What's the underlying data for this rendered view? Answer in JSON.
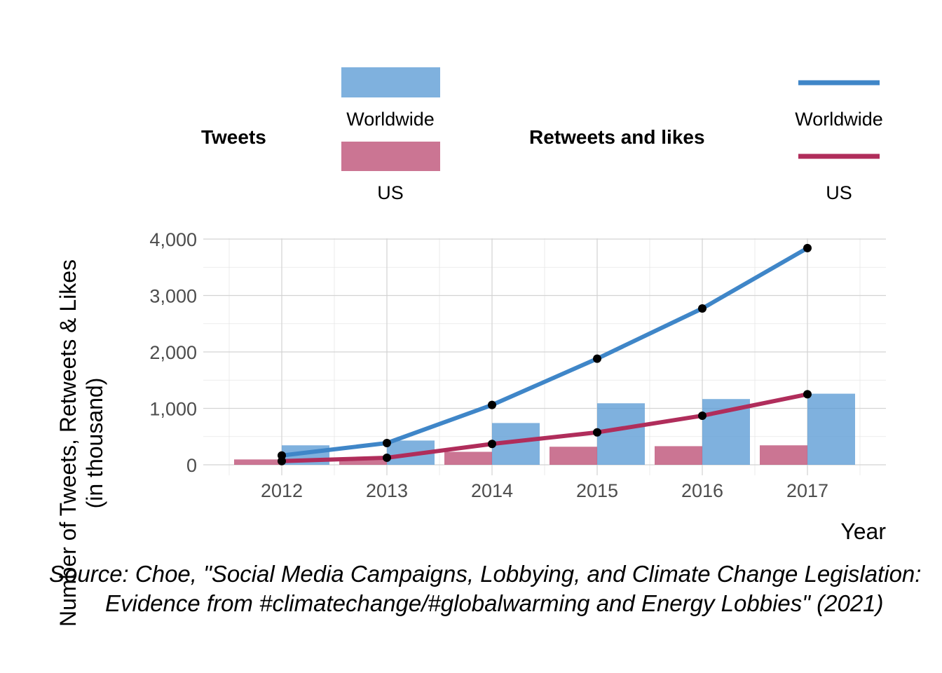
{
  "colors": {
    "tweets_worldwide": "#5B9BD5",
    "tweets_us": "#BC4E74",
    "retweets_worldwide": "#3F86C8",
    "retweets_us": "#B02D5B",
    "point": "#000000"
  },
  "legend": {
    "tweets_title": "Tweets",
    "retweets_title": "Retweets and likes",
    "worldwide_label": "Worldwide",
    "us_label": "US"
  },
  "chart_data": {
    "type": "bar",
    "title": "",
    "xlabel": "Year",
    "ylabel_line1": "Number of Tweets, Retweets & Likes",
    "ylabel_line2": "(in thousand)",
    "categories": [
      "2012",
      "2013",
      "2014",
      "2015",
      "2016",
      "2017"
    ],
    "ylim": [
      0,
      4000
    ],
    "yticks": [
      0,
      1000,
      2000,
      3000,
      4000
    ],
    "ytick_labels": [
      "0",
      "1,000",
      "2,000",
      "3,000",
      "4,000"
    ],
    "grid": true,
    "bar_series": [
      {
        "name": "US",
        "group": "Tweets",
        "values": [
          95,
          100,
          230,
          320,
          330,
          345
        ]
      },
      {
        "name": "Worldwide",
        "group": "Tweets",
        "values": [
          345,
          430,
          740,
          1090,
          1165,
          1260
        ]
      }
    ],
    "line_series": [
      {
        "name": "Worldwide",
        "group": "Retweets and likes",
        "values": [
          165,
          385,
          1060,
          1880,
          2770,
          3840
        ]
      },
      {
        "name": "US",
        "group": "Retweets and likes",
        "values": [
          65,
          125,
          370,
          575,
          870,
          1250
        ]
      }
    ],
    "caption_line1": "Source: Choe, \"Social Media Campaigns, Lobbying, and Climate Change Legislation:",
    "caption_line2": "Evidence from #climatechange/#globalwarming and Energy Lobbies\" (2021)"
  }
}
